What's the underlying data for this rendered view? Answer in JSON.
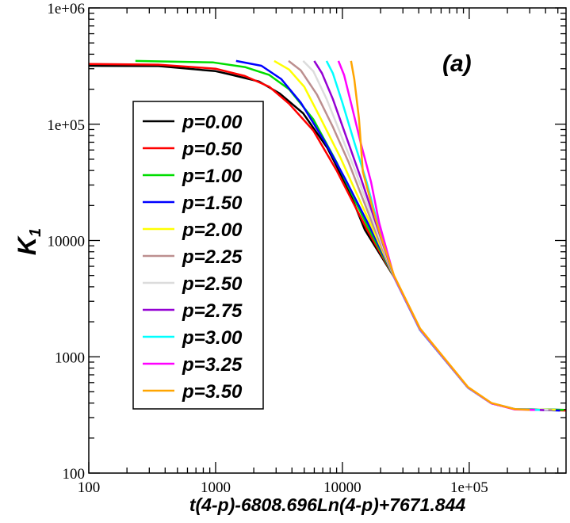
{
  "chart_data": {
    "type": "line",
    "title": "",
    "annotation": "(a)",
    "xlabel": "t(4-p)-6808.696Ln(4-p)+7671.844",
    "ylabel": "K",
    "ylabel_subscript": "1",
    "xscale": "log",
    "yscale": "log",
    "xlim": [
      100,
      580000
    ],
    "ylim": [
      100,
      1000000
    ],
    "x_ticks": [
      100,
      1000,
      10000,
      100000
    ],
    "x_tick_labels": [
      "100",
      "1000",
      "10000",
      "1e+05"
    ],
    "y_ticks": [
      100,
      1000,
      10000,
      100000,
      1000000
    ],
    "y_tick_labels": [
      "100",
      "1000",
      "10000",
      "1e+05",
      "1e+06"
    ],
    "grid": false,
    "legend_placement": "left",
    "series": [
      {
        "name": "p=0.00",
        "color": "#000000",
        "points": [
          [
            100,
            318000
          ],
          [
            355,
            316000
          ],
          [
            1000,
            286000
          ],
          [
            1230,
            272000
          ],
          [
            2200,
            233000
          ],
          [
            3200,
            184000
          ],
          [
            4900,
            124000
          ],
          [
            7600,
            62500
          ],
          [
            11200,
            27200
          ],
          [
            15000,
            12400
          ],
          [
            25500,
            4860
          ],
          [
            41000,
            1700
          ],
          [
            97700,
            543
          ],
          [
            150000,
            398
          ],
          [
            229000,
            355
          ],
          [
            575000,
            350
          ]
        ]
      },
      {
        "name": "p=0.50",
        "color": "#ff0000",
        "points": [
          [
            100,
            330000
          ],
          [
            355,
            325000
          ],
          [
            1000,
            300000
          ],
          [
            1700,
            260000
          ],
          [
            2650,
            210000
          ],
          [
            3800,
            150000
          ],
          [
            5900,
            88000
          ],
          [
            9000,
            40000
          ],
          [
            15500,
            12600
          ],
          [
            25500,
            4860
          ],
          [
            41000,
            1700
          ],
          [
            97700,
            543
          ],
          [
            150000,
            398
          ],
          [
            229000,
            355
          ],
          [
            575000,
            345
          ]
        ]
      },
      {
        "name": "p=1.00",
        "color": "#00dd00",
        "points": [
          [
            233,
            350000
          ],
          [
            960,
            340000
          ],
          [
            1700,
            310000
          ],
          [
            2650,
            265000
          ],
          [
            3800,
            200000
          ],
          [
            5900,
            110000
          ],
          [
            9000,
            47000
          ],
          [
            16000,
            12800
          ],
          [
            25500,
            4860
          ],
          [
            41000,
            1700
          ],
          [
            97700,
            543
          ],
          [
            150000,
            398
          ],
          [
            229000,
            355
          ],
          [
            560000,
            350
          ]
        ]
      },
      {
        "name": "p=1.50",
        "color": "#0000ff",
        "points": [
          [
            1450,
            350000
          ],
          [
            2300,
            318000
          ],
          [
            3300,
            244000
          ],
          [
            4700,
            153000
          ],
          [
            7300,
            70000
          ],
          [
            10500,
            34000
          ],
          [
            16500,
            13000
          ],
          [
            25500,
            4860
          ],
          [
            41000,
            1700
          ],
          [
            97700,
            543
          ],
          [
            150000,
            398
          ],
          [
            229000,
            355
          ],
          [
            520000,
            345
          ]
        ]
      },
      {
        "name": "p=2.00",
        "color": "#ffff00",
        "points": [
          [
            2900,
            350000
          ],
          [
            3800,
            295000
          ],
          [
            5000,
            210000
          ],
          [
            6800,
            110000
          ],
          [
            9700,
            51000
          ],
          [
            12600,
            27000
          ],
          [
            17000,
            13200
          ],
          [
            25500,
            4860
          ],
          [
            41000,
            1700
          ],
          [
            97700,
            543
          ],
          [
            150000,
            398
          ],
          [
            229000,
            355
          ],
          [
            480000,
            350
          ]
        ]
      },
      {
        "name": "p=2.25",
        "color": "#bc8f8f",
        "points": [
          [
            3760,
            350000
          ],
          [
            4700,
            290000
          ],
          [
            6300,
            180000
          ],
          [
            8400,
            95000
          ],
          [
            11200,
            47000
          ],
          [
            17500,
            13400
          ],
          [
            25500,
            4860
          ],
          [
            41000,
            1700
          ],
          [
            97700,
            543
          ],
          [
            150000,
            398
          ],
          [
            229000,
            355
          ],
          [
            450000,
            348
          ]
        ]
      },
      {
        "name": "p=2.50",
        "color": "#dcdcdc",
        "points": [
          [
            4900,
            350000
          ],
          [
            5900,
            285000
          ],
          [
            7500,
            165000
          ],
          [
            9700,
            82000
          ],
          [
            12600,
            40000
          ],
          [
            18000,
            13600
          ],
          [
            25500,
            4860
          ],
          [
            41000,
            1700
          ],
          [
            97700,
            543
          ],
          [
            150000,
            398
          ],
          [
            229000,
            355
          ],
          [
            420000,
            350
          ]
        ]
      },
      {
        "name": "p=2.75",
        "color": "#9400d3",
        "points": [
          [
            6000,
            350000
          ],
          [
            6900,
            275000
          ],
          [
            8400,
            165000
          ],
          [
            10800,
            76000
          ],
          [
            13900,
            35000
          ],
          [
            18500,
            13800
          ],
          [
            25500,
            4860
          ],
          [
            41000,
            1700
          ],
          [
            97700,
            543
          ],
          [
            150000,
            398
          ],
          [
            229000,
            355
          ],
          [
            390000,
            348
          ]
        ]
      },
      {
        "name": "p=3.00",
        "color": "#00ffff",
        "points": [
          [
            7500,
            350000
          ],
          [
            8400,
            275000
          ],
          [
            10000,
            153000
          ],
          [
            12400,
            70000
          ],
          [
            15500,
            32000
          ],
          [
            19000,
            14000
          ],
          [
            25500,
            4860
          ],
          [
            41000,
            1700
          ],
          [
            97700,
            543
          ],
          [
            150000,
            398
          ],
          [
            229000,
            355
          ],
          [
            360000,
            350
          ]
        ]
      },
      {
        "name": "p=3.25",
        "color": "#ff00ff",
        "points": [
          [
            9300,
            350000
          ],
          [
            10300,
            265000
          ],
          [
            11900,
            141000
          ],
          [
            13900,
            70000
          ],
          [
            16800,
            32000
          ],
          [
            19500,
            14200
          ],
          [
            25500,
            4900
          ],
          [
            41000,
            1720
          ],
          [
            97700,
            545
          ],
          [
            150000,
            398
          ],
          [
            229000,
            352
          ],
          [
            330000,
            350
          ]
        ]
      },
      {
        "name": "p=3.50",
        "color": "#ffa500",
        "points": [
          [
            11700,
            350000
          ],
          [
            12400,
            244000
          ],
          [
            13500,
            112000
          ],
          [
            14500,
            39000
          ],
          [
            17300,
            19000
          ],
          [
            19900,
            11200
          ],
          [
            25500,
            5000
          ],
          [
            41000,
            1750
          ],
          [
            97700,
            550
          ],
          [
            150000,
            400
          ],
          [
            229000,
            355
          ],
          [
            300000,
            350
          ]
        ]
      }
    ]
  }
}
